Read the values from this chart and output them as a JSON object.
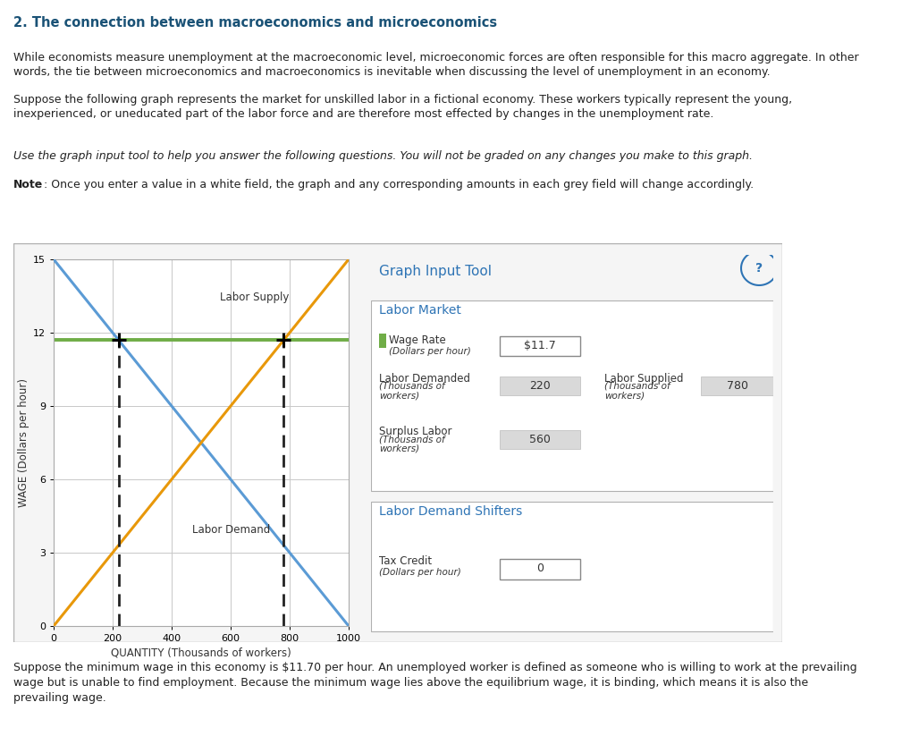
{
  "title": "2. The connection between macroeconomics and microeconomics",
  "title_color": "#1a5276",
  "body1_line1": "While economists measure unemployment at the macroeconomic level, microeconomic forces are often responsible for this macro aggregate. In other",
  "body1_line2": "words, the tie between microeconomics and macroeconomics is inevitable when discussing the level of unemployment in an economy.",
  "body2_line1": "Suppose the following graph represents the market for unskilled labor in a fictional economy. These workers typically represent the young,",
  "body2_line2": "inexperienced, or uneducated part of the labor force and are therefore most effected by changes in the unemployment rate.",
  "italic_line": "Use the graph input tool to help you answer the following questions. You will not be graded on any changes you make to this graph.",
  "note_bold": "Note",
  "note_rest": ": Once you enter a value in a white field, the graph and any corresponding amounts in each grey field will change accordingly.",
  "bottom1": "Suppose the minimum wage in this economy is $11.70 per hour. An unemployed worker is defined as someone who is willing to work at the prevailing",
  "bottom2": "wage but is unable to find employment. Because the minimum wage lies above the equilibrium wage, it is binding, which means it is also the",
  "bottom3": "prevailing wage.",
  "supply_color": "#e8980a",
  "demand_color": "#5b9bd5",
  "wage_line_color": "#70ad47",
  "dashed_color": "#222222",
  "supply_label": "Labor Supply",
  "demand_label": "Labor Demand",
  "xlabel": "QUANTITY (Thousands of workers)",
  "ylabel": "WAGE (Dollars per hour)",
  "xlim": [
    0,
    1000
  ],
  "ylim": [
    0,
    15
  ],
  "xticks": [
    0,
    200,
    400,
    600,
    800,
    1000
  ],
  "yticks": [
    0,
    3,
    6,
    9,
    12,
    15
  ],
  "wage_rate_display": "$11.7",
  "labor_demanded": "220",
  "labor_supplied": "780",
  "surplus_labor": "560",
  "tax_credit": "0",
  "dashed_x1": 220,
  "dashed_x2": 780,
  "min_wage": 11.7,
  "section_blue": "#2e74b5",
  "panel_edge": "#b0b0b0",
  "grey_fill": "#d9d9d9",
  "text_color": "#222222",
  "graph_label_color": "#333333"
}
